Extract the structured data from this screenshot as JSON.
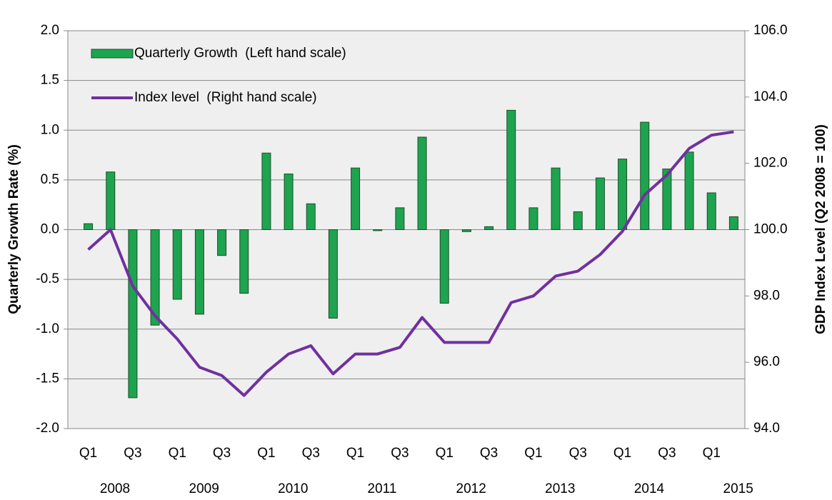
{
  "chart_data": {
    "type": "bar-line",
    "categories": [
      "Q1",
      null,
      "Q3",
      null,
      "Q1",
      null,
      "Q3",
      null,
      "Q1",
      null,
      "Q3",
      null,
      "Q1",
      null,
      "Q3",
      null,
      "Q1",
      null,
      "Q3",
      null,
      "Q1",
      null,
      "Q3",
      null,
      "Q1",
      null,
      "Q3",
      null,
      "Q1",
      null
    ],
    "years": [
      "2008",
      "2009",
      "2010",
      "2011",
      "2012",
      "2013",
      "2014",
      "2015"
    ],
    "ylabel": "Quarterly Growth Rate (%)",
    "y2label": "GDP Index Level (Q2 2008 = 100)",
    "series": [
      {
        "name": "Quarterly Growth  (Left hand scale)",
        "type": "bar",
        "color": "#1ea34f",
        "values": [
          0.06,
          0.58,
          -1.69,
          -0.96,
          -0.7,
          -0.85,
          -0.26,
          -0.64,
          0.77,
          0.56,
          0.26,
          -0.89,
          0.62,
          -0.01,
          0.22,
          0.93,
          -0.74,
          -0.02,
          0.03,
          1.2,
          0.22,
          0.62,
          0.18,
          0.52,
          0.71,
          1.08,
          0.61,
          0.78,
          0.37,
          0.13
        ]
      },
      {
        "name": "Index level  (Right hand scale)",
        "type": "line",
        "axis": "y2",
        "color": "#7030a0",
        "values": [
          99.4,
          100.0,
          98.3,
          97.4,
          96.7,
          95.85,
          95.6,
          95.0,
          95.7,
          96.25,
          96.5,
          95.65,
          96.25,
          96.25,
          96.45,
          97.35,
          96.6,
          96.6,
          96.6,
          97.8,
          98.0,
          98.6,
          98.75,
          99.25,
          99.95,
          101.05,
          101.65,
          102.45,
          102.85,
          102.95
        ]
      }
    ],
    "ylim": [
      -2,
      2
    ],
    "yticks": [
      {
        "value": -2,
        "label": "-2.0"
      },
      {
        "value": -1.5,
        "label": "-1.5"
      },
      {
        "value": -1,
        "label": "-1.0"
      },
      {
        "value": -0.5,
        "label": "-0.5"
      },
      {
        "value": 0,
        "label": "0.0"
      },
      {
        "value": 0.5,
        "label": "0.5"
      },
      {
        "value": 1,
        "label": "1.0"
      },
      {
        "value": 1.5,
        "label": "1.5"
      },
      {
        "value": 2,
        "label": "2.0"
      }
    ],
    "y2lim": [
      94,
      106
    ],
    "y2ticks": [
      {
        "value": 94,
        "label": "94.0"
      },
      {
        "value": 96,
        "label": "96.0"
      },
      {
        "value": 98,
        "label": "98.0"
      },
      {
        "value": 100,
        "label": "100.0"
      },
      {
        "value": 102,
        "label": "102.0"
      },
      {
        "value": 104,
        "label": "104.0"
      },
      {
        "value": 106,
        "label": "106.0"
      }
    ],
    "grid": true,
    "legend": "upper left"
  }
}
